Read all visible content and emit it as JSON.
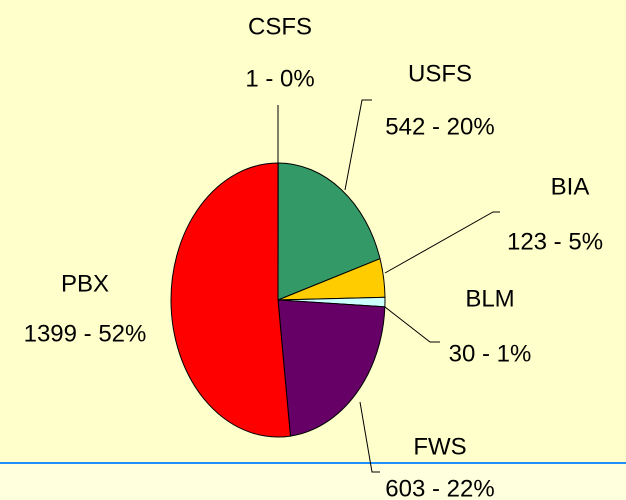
{
  "chart_data": {
    "type": "pie",
    "categories": [
      "CSFS",
      "USFS",
      "BIA",
      "BLM",
      "FWS",
      "PBX"
    ],
    "values": [
      1,
      542,
      123,
      30,
      603,
      1399
    ],
    "value_labels": [
      "1 - 0%",
      "542 - 20%",
      "123 - 5%",
      "30 - 1%",
      "603 - 22%",
      "1399 - 52%"
    ],
    "colors": [
      "#000080",
      "#339966",
      "#ffcc00",
      "#ccffff",
      "#660066",
      "#ff0000"
    ]
  }
}
